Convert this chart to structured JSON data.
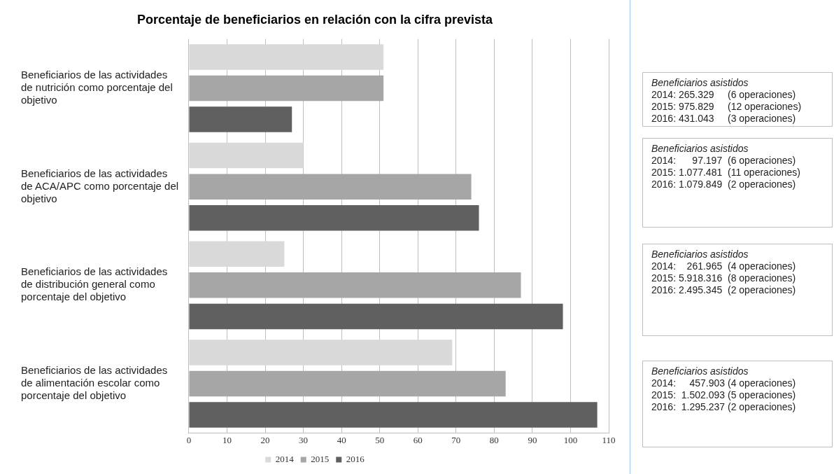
{
  "chart_data": {
    "type": "bar",
    "orientation": "horizontal",
    "title": "Porcentaje de beneficiarios en relación con la cifra prevista",
    "categories": [
      "Beneficiarios de las actividades de nutrición como porcentaje del objetivo",
      "Beneficiarios de las actividades de ACA/APC como porcentaje del objetivo",
      "Beneficiarios de las actividades de distribución general como porcentaje del objetivo",
      "Beneficiarios de las actividades de alimentación escolar como porcentaje del objetivo"
    ],
    "series": [
      {
        "name": "2014",
        "color": "#d9d9d9",
        "values": [
          51,
          30,
          25,
          69
        ]
      },
      {
        "name": "2015",
        "color": "#a6a6a6",
        "values": [
          51,
          74,
          87,
          83
        ]
      },
      {
        "name": "2016",
        "color": "#606060",
        "values": [
          27,
          76,
          98,
          107
        ]
      }
    ],
    "xlim": [
      0,
      110
    ],
    "xticks": [
      0,
      10,
      20,
      30,
      40,
      50,
      60,
      70,
      80,
      90,
      100,
      110
    ],
    "grid": "x",
    "legend": "bottom",
    "annotations": [
      "Beneficiarios asistidos\n2014: 265.329     (6 operaciones)\n2015: 975.829     (12 operaciones)\n2016: 431.043     (3 operaciones)",
      "Beneficiarios asistidos\n2014:      97.197  (6 operaciones)\n2015: 1.077.481  (11 operaciones)\n2016: 1.079.849  (2 operaciones)",
      "Beneficiarios asistidos\n2014:    261.965  (4 operaciones)\n2015: 5.918.316  (8 operaciones)\n2016: 2.495.345  (2 operaciones)",
      "Beneficiarios asistidos\n2014:     457.903 (4 operaciones)\n2015:  1.502.093 (5 operaciones)\n2016:  1.295.237 (2 operaciones)"
    ]
  }
}
